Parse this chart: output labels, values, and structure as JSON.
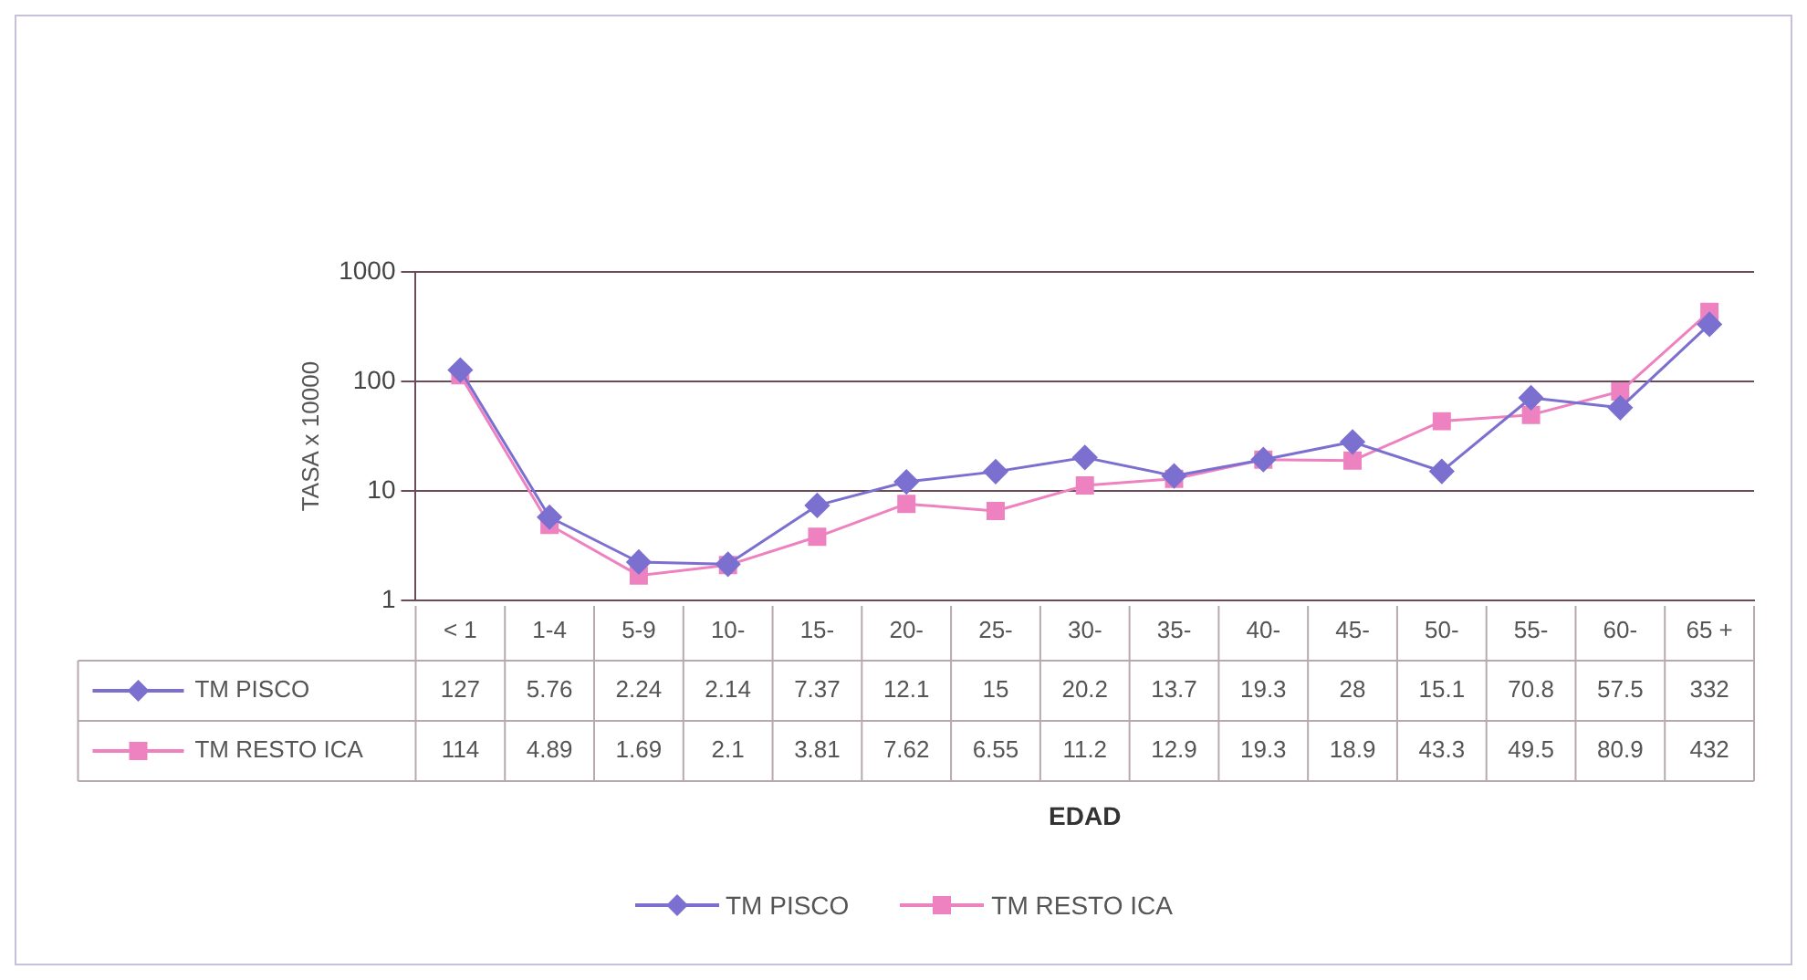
{
  "chart_data": {
    "type": "line",
    "annotations": [
      "EDAD"
    ],
    "ylabel": "TASA x 10000",
    "categories": [
      "< 1",
      "1-4",
      "5-9",
      "10-",
      "15-",
      "20-",
      "25-",
      "30-",
      "35-",
      "40-",
      "45-",
      "50-",
      "55-",
      "60-",
      "65 +"
    ],
    "series": [
      {
        "name": "TM PISCO",
        "color": "#7b6fd0",
        "marker": "diamond",
        "values": [
          127,
          5.76,
          2.24,
          2.14,
          7.37,
          12.1,
          15,
          20.2,
          13.7,
          19.3,
          28,
          15.1,
          70.8,
          57.5,
          332
        ]
      },
      {
        "name": "TM RESTO ICA",
        "color": "#ee82c0",
        "marker": "square",
        "values": [
          114,
          4.89,
          1.69,
          2.1,
          3.81,
          7.62,
          6.55,
          11.2,
          12.9,
          19.3,
          18.9,
          43.3,
          49.5,
          80.9,
          432
        ]
      }
    ],
    "log": true,
    "ylim": [
      1,
      1000
    ],
    "yticks": [
      1,
      10,
      100,
      1000
    ],
    "grid": "y",
    "legend": "bottom",
    "data_labels": true
  }
}
